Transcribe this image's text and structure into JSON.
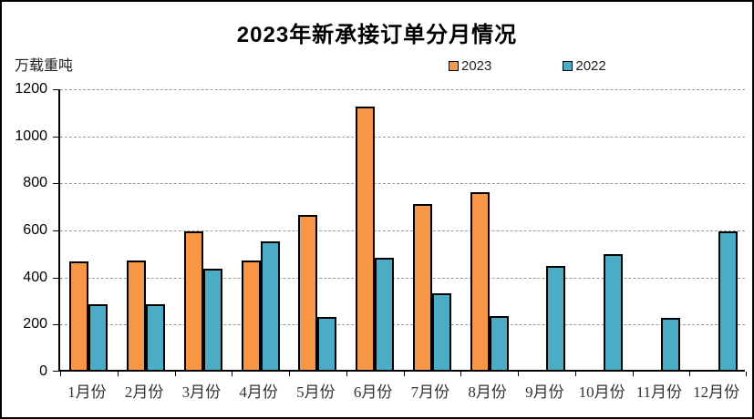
{
  "title": "2023年新承接订单分月情况",
  "unit_label": "万载重吨",
  "legend": [
    {
      "label": "2023",
      "color": "#F79646"
    },
    {
      "label": "2022",
      "color": "#4BACC6"
    }
  ],
  "chart_data": {
    "type": "bar",
    "title": "2023年新承接订单分月情况",
    "ylabel": "万载重吨",
    "xlabel": "",
    "categories": [
      "1月份",
      "2月份",
      "3月份",
      "4月份",
      "5月份",
      "6月份",
      "7月份",
      "8月份",
      "9月份",
      "10月份",
      "11月份",
      "12月份"
    ],
    "series": [
      {
        "name": "2023",
        "color": "#F79646",
        "values": [
          460,
          465,
          590,
          465,
          660,
          1120,
          705,
          755,
          null,
          null,
          null,
          null
        ]
      },
      {
        "name": "2022",
        "color": "#4BACC6",
        "values": [
          280,
          280,
          430,
          545,
          225,
          475,
          325,
          230,
          440,
          490,
          220,
          590
        ]
      }
    ],
    "ylim": [
      0,
      1200
    ],
    "yticks": [
      0,
      200,
      400,
      600,
      800,
      1000,
      1200
    ],
    "grid": "horizontal-dashed",
    "legend_position": "top"
  }
}
